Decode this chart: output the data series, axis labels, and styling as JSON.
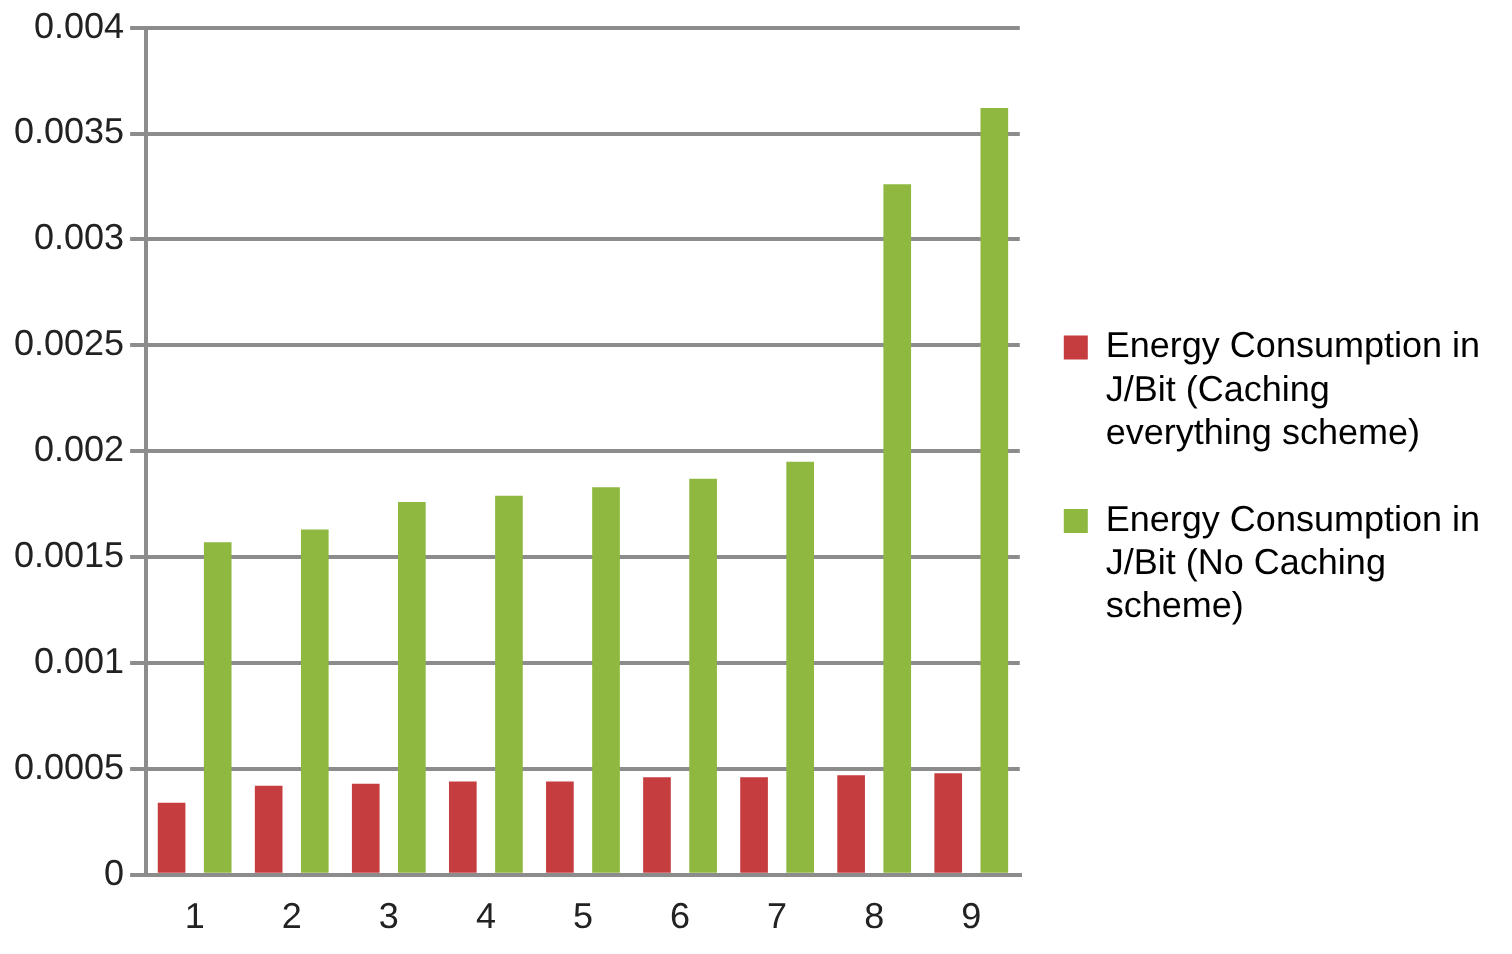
{
  "chart_data": {
    "type": "bar",
    "categories": [
      "1",
      "2",
      "3",
      "4",
      "5",
      "6",
      "7",
      "8",
      "9"
    ],
    "series": [
      {
        "name": "Energy Consumption in J/Bit (Caching everything scheme)",
        "color": "#c63d3f",
        "values": [
          0.00034,
          0.00042,
          0.00043,
          0.00044,
          0.00044,
          0.00046,
          0.00046,
          0.00047,
          0.00048
        ]
      },
      {
        "name": "Energy Consumption in J/Bit (No Caching scheme)",
        "color": "#8fb840",
        "values": [
          0.00157,
          0.00163,
          0.00176,
          0.00179,
          0.00183,
          0.00187,
          0.00195,
          0.00326,
          0.00362
        ]
      }
    ],
    "ylim": [
      0,
      0.004
    ],
    "yticks": [
      0,
      0.0005,
      0.001,
      0.0015,
      0.002,
      0.0025,
      0.003,
      0.0035,
      0.004
    ],
    "grid": "y",
    "legend": "right"
  }
}
